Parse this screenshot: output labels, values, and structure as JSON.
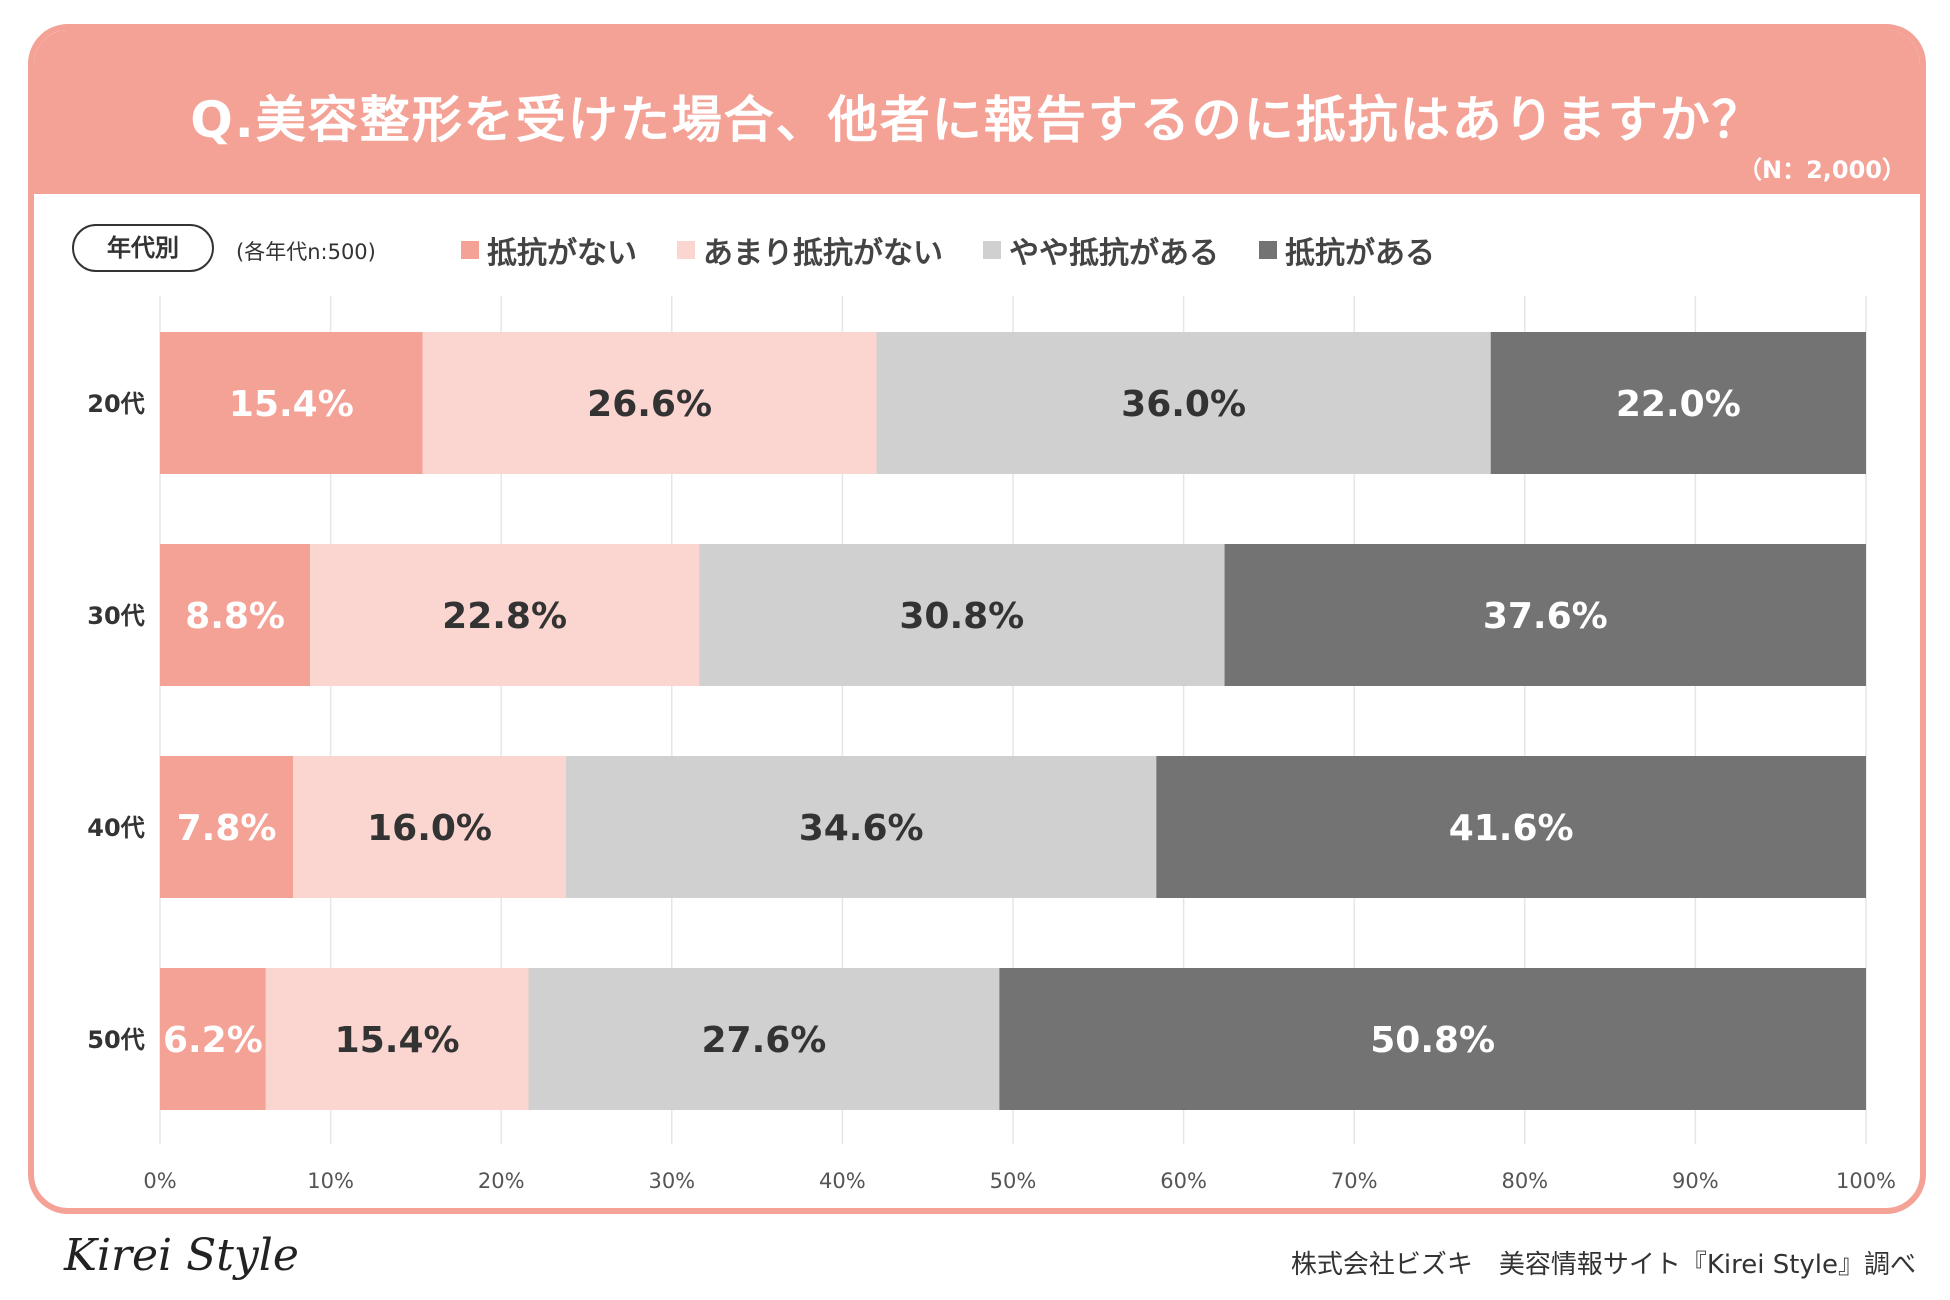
{
  "header": {
    "title": "Q.美容整形を受けた場合、他者に報告するのに抵抗はありますか？",
    "sample_size": "（N：2,000）"
  },
  "filter": {
    "age_label": "年代別",
    "age_note": "(各年代n:500)"
  },
  "chart_data": {
    "type": "bar",
    "orientation": "horizontal",
    "stacked": true,
    "categories": [
      "20代",
      "30代",
      "40代",
      "50代"
    ],
    "series": [
      {
        "name": "抵抗がない",
        "color": "#f4a196",
        "label_color": "#ffffff",
        "values": [
          15.4,
          8.8,
          7.8,
          6.2
        ]
      },
      {
        "name": "あまり抵抗がない",
        "color": "#fbd6d1",
        "label_color": "#333333",
        "values": [
          26.6,
          22.8,
          16.0,
          15.4
        ]
      },
      {
        "name": "やや抵抗がある",
        "color": "#d0d0d0",
        "label_color": "#333333",
        "values": [
          36.0,
          30.8,
          34.6,
          27.6
        ]
      },
      {
        "name": "抵抗がある",
        "color": "#737373",
        "label_color": "#ffffff",
        "values": [
          22.0,
          37.6,
          41.6,
          50.8
        ]
      }
    ],
    "data_labels": [
      [
        "15.4%",
        "26.6%",
        "36.0%",
        "22.0%"
      ],
      [
        "8.8%",
        "22.8%",
        "30.8%",
        "37.6%"
      ],
      [
        "7.8%",
        "16.0%",
        "34.6%",
        "41.6%"
      ],
      [
        "6.2%",
        "15.4%",
        "27.6%",
        "50.8%"
      ]
    ],
    "xlim": [
      0,
      100
    ],
    "xticks": [
      "0%",
      "10%",
      "20%",
      "30%",
      "40%",
      "50%",
      "60%",
      "70%",
      "80%",
      "90%",
      "100%"
    ],
    "grid": true,
    "legend_position": "top"
  },
  "footer": {
    "logo": "Kirei Style",
    "credit": "株式会社ビズキ　美容情報サイト『Kirei Style』調べ"
  }
}
